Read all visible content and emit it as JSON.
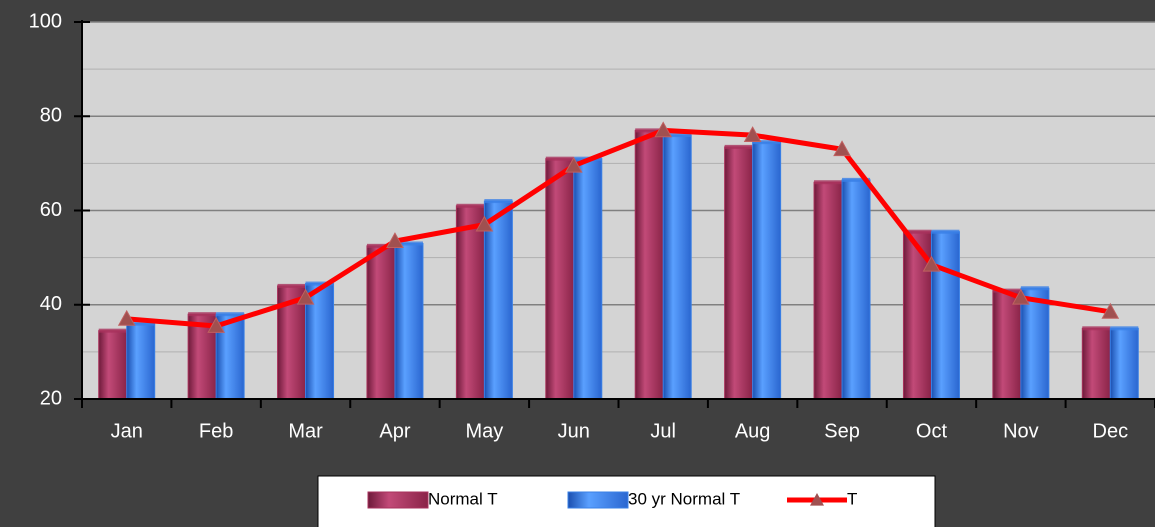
{
  "chart_data": {
    "type": "bar-line",
    "categories": [
      "Jan",
      "Feb",
      "Mar",
      "Apr",
      "May",
      "Jun",
      "Jul",
      "Aug",
      "Sep",
      "Oct",
      "Nov",
      "Dec"
    ],
    "series": [
      {
        "name": "Normal T",
        "type": "bar",
        "color": "#a8325c",
        "values": [
          34.5,
          38,
          44,
          52.5,
          61,
          71,
          77,
          73.5,
          66,
          55.5,
          43,
          35
        ]
      },
      {
        "name": "30 yr Normal T",
        "type": "bar",
        "color": "#3a80e6",
        "values": [
          36,
          38,
          44.5,
          53,
          62,
          71,
          76,
          74.5,
          66.5,
          55.5,
          43.5,
          35
        ]
      },
      {
        "name": "T",
        "type": "line",
        "color": "#ff0000",
        "values": [
          37,
          35.5,
          41.5,
          53.5,
          57,
          69.5,
          77,
          76,
          73,
          48.5,
          41.5,
          38.5
        ]
      }
    ],
    "ylim": [
      20,
      100
    ],
    "yticks": [
      20,
      40,
      60,
      80,
      100
    ],
    "minor_yticks": [
      30,
      50,
      70,
      90
    ],
    "grid": true
  }
}
